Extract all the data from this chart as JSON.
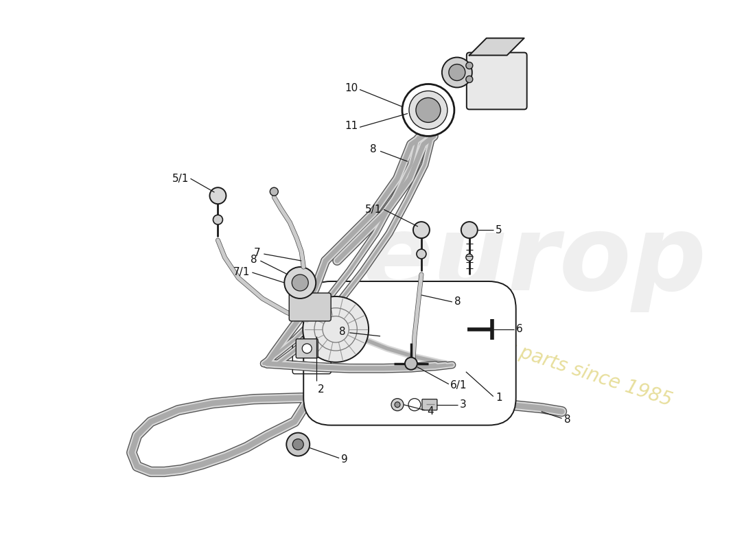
{
  "bg_color": "#ffffff",
  "line_color": "#1a1a1a",
  "label_color": "#111111",
  "watermark_yellow": "#d4c44a",
  "watermark_gray": "#c0c0c0",
  "label_fontsize": 11
}
